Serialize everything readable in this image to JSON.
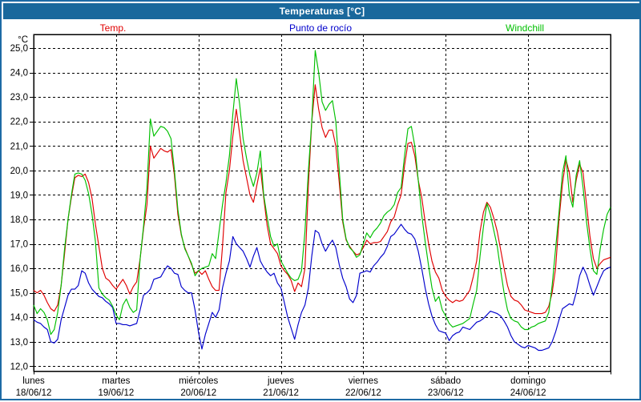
{
  "titlebar": {
    "title": "Temperaturas [°C]"
  },
  "legend": {
    "note": "series names bound from chart_data.series"
  },
  "chart_data": {
    "type": "line",
    "title": "Temperaturas [°C]",
    "ylabel": "°C",
    "ylim": [
      12.0,
      25.0
    ],
    "y_tick_step": 1.0,
    "y_tick_labels": [
      "25,0",
      "24,0",
      "23,0",
      "22,0",
      "21,0",
      "20,0",
      "19,0",
      "18,0",
      "17,0",
      "16,0",
      "15,0",
      "14,0",
      "13,0",
      "12,0"
    ],
    "grid": true,
    "legend_position": "top",
    "x_unit": "hours",
    "x_range_hours": [
      0,
      168
    ],
    "days": 7,
    "x_labels": [
      {
        "day": "lunes",
        "date": "18/06/12"
      },
      {
        "day": "martes",
        "date": "19/06/12"
      },
      {
        "day": "miércoles",
        "date": "20/06/12"
      },
      {
        "day": "jueves",
        "date": "21/06/12"
      },
      {
        "day": "viernes",
        "date": "22/06/12"
      },
      {
        "day": "sábado",
        "date": "23/06/12"
      },
      {
        "day": "domingo",
        "date": "24/06/12"
      }
    ],
    "series": [
      {
        "name": "Temp.",
        "color": "#e00000",
        "values": [
          15.1,
          15.0,
          15.1,
          14.9,
          14.6,
          14.35,
          14.25,
          14.5,
          15.3,
          16.6,
          18.0,
          18.9,
          19.7,
          19.8,
          19.75,
          19.85,
          19.5,
          18.85,
          17.8,
          16.9,
          16.0,
          15.6,
          15.5,
          15.3,
          15.15,
          15.35,
          15.55,
          15.3,
          14.95,
          15.25,
          15.45,
          16.4,
          17.6,
          18.6,
          21.0,
          20.5,
          20.7,
          20.9,
          20.8,
          20.75,
          20.85,
          19.8,
          18.2,
          17.35,
          16.85,
          16.5,
          16.15,
          15.8,
          15.9,
          15.75,
          15.9,
          15.55,
          15.25,
          15.1,
          15.1,
          16.9,
          19.1,
          20.0,
          21.4,
          22.5,
          21.5,
          20.4,
          19.7,
          19.0,
          18.7,
          19.4,
          20.1,
          18.9,
          17.75,
          17.0,
          16.8,
          16.6,
          16.1,
          15.9,
          15.75,
          15.5,
          15.05,
          15.4,
          15.25,
          16.0,
          19.4,
          22.0,
          23.5,
          22.5,
          21.75,
          21.35,
          21.65,
          21.65,
          21.0,
          19.5,
          17.9,
          17.15,
          16.9,
          16.7,
          16.55,
          16.6,
          16.85,
          17.15,
          17.0,
          17.05,
          17.05,
          17.1,
          17.3,
          17.5,
          17.9,
          18.1,
          18.6,
          19.0,
          20.2,
          21.1,
          21.15,
          20.6,
          19.6,
          18.9,
          17.9,
          17.0,
          16.3,
          15.85,
          15.6,
          15.1,
          14.85,
          14.7,
          14.6,
          14.7,
          14.65,
          14.7,
          14.9,
          15.1,
          15.65,
          16.3,
          17.5,
          18.3,
          18.7,
          18.5,
          18.05,
          17.5,
          16.75,
          16.0,
          15.3,
          14.85,
          14.7,
          14.65,
          14.5,
          14.3,
          14.25,
          14.2,
          14.15,
          14.15,
          14.15,
          14.2,
          14.45,
          15.0,
          16.0,
          18.0,
          19.45,
          20.45,
          19.9,
          18.7,
          19.6,
          20.25,
          19.9,
          18.6,
          17.3,
          16.4,
          16.0,
          16.2,
          16.35,
          16.4,
          16.45
        ]
      },
      {
        "name": "Punto de rocío",
        "color": "#0000cc",
        "values": [
          13.9,
          13.8,
          13.75,
          13.6,
          13.5,
          13.0,
          12.95,
          13.1,
          13.9,
          14.4,
          14.9,
          15.15,
          15.15,
          15.3,
          15.9,
          15.8,
          15.4,
          15.15,
          15.0,
          14.85,
          14.8,
          14.65,
          14.55,
          14.4,
          13.75,
          13.75,
          13.7,
          13.7,
          13.65,
          13.7,
          13.75,
          14.3,
          14.9,
          15.0,
          15.15,
          15.55,
          15.6,
          15.65,
          15.9,
          16.1,
          16.0,
          15.8,
          15.75,
          15.25,
          15.1,
          15.0,
          15.0,
          14.3,
          13.4,
          12.7,
          13.3,
          13.75,
          14.2,
          14.0,
          14.3,
          15.2,
          15.8,
          16.3,
          17.3,
          17.0,
          16.85,
          16.7,
          16.4,
          16.05,
          16.5,
          16.85,
          16.3,
          16.05,
          15.85,
          15.7,
          15.8,
          15.4,
          15.2,
          14.6,
          14.0,
          13.55,
          13.1,
          13.7,
          14.2,
          14.5,
          15.2,
          16.5,
          17.55,
          17.45,
          17.0,
          16.7,
          16.95,
          17.15,
          16.85,
          16.15,
          15.6,
          15.25,
          14.75,
          14.6,
          14.9,
          15.8,
          15.85,
          15.9,
          15.85,
          16.1,
          16.25,
          16.45,
          16.6,
          16.9,
          17.3,
          17.4,
          17.6,
          17.8,
          17.6,
          17.45,
          17.4,
          17.2,
          16.7,
          16.0,
          15.2,
          14.55,
          14.05,
          13.7,
          13.45,
          13.4,
          13.35,
          13.05,
          13.25,
          13.35,
          13.4,
          13.6,
          13.55,
          13.5,
          13.65,
          13.8,
          13.85,
          13.95,
          14.1,
          14.25,
          14.2,
          14.15,
          14.05,
          13.85,
          13.6,
          13.25,
          13.0,
          12.9,
          12.8,
          12.75,
          12.85,
          12.8,
          12.75,
          12.65,
          12.65,
          12.7,
          12.75,
          13.0,
          13.4,
          13.9,
          14.35,
          14.45,
          14.55,
          14.5,
          15.0,
          15.7,
          16.05,
          15.75,
          15.3,
          14.9,
          15.25,
          15.6,
          15.9,
          16.0,
          16.05
        ]
      },
      {
        "name": "Windchill",
        "color": "#00c000",
        "values": [
          14.5,
          14.15,
          14.35,
          14.2,
          13.9,
          13.3,
          13.5,
          14.2,
          15.3,
          16.8,
          18.0,
          19.0,
          19.85,
          19.9,
          19.85,
          19.6,
          19.05,
          18.2,
          17.1,
          15.2,
          14.95,
          14.8,
          14.7,
          14.45,
          14.1,
          13.9,
          14.5,
          14.75,
          14.4,
          14.2,
          14.3,
          16.4,
          17.7,
          19.3,
          22.1,
          21.4,
          21.6,
          21.8,
          21.75,
          21.6,
          21.3,
          20.0,
          18.4,
          17.4,
          16.8,
          16.5,
          16.2,
          15.7,
          15.9,
          16.0,
          16.05,
          16.1,
          16.6,
          16.4,
          17.5,
          18.6,
          19.5,
          20.6,
          22.3,
          23.75,
          22.7,
          21.3,
          20.5,
          19.8,
          19.35,
          19.9,
          20.8,
          19.0,
          18.1,
          17.3,
          16.9,
          17.0,
          16.3,
          16.05,
          15.8,
          15.6,
          15.5,
          15.55,
          15.9,
          17.5,
          20.0,
          22.0,
          24.9,
          24.0,
          22.8,
          22.45,
          22.7,
          22.85,
          22.0,
          20.0,
          18.0,
          17.2,
          16.85,
          16.7,
          16.45,
          16.55,
          17.0,
          17.45,
          17.25,
          17.5,
          17.65,
          17.85,
          18.15,
          18.3,
          18.4,
          18.6,
          19.1,
          19.3,
          20.6,
          21.7,
          21.8,
          21.0,
          19.6,
          18.2,
          17.1,
          16.1,
          15.2,
          14.65,
          14.85,
          14.3,
          14.05,
          13.75,
          13.6,
          13.65,
          13.7,
          13.75,
          13.85,
          13.95,
          14.55,
          15.1,
          16.5,
          17.7,
          18.65,
          18.2,
          17.55,
          16.9,
          15.9,
          15.0,
          14.3,
          13.95,
          13.85,
          13.8,
          13.6,
          13.5,
          13.5,
          13.6,
          13.65,
          13.75,
          13.8,
          13.85,
          14.2,
          15.3,
          16.8,
          18.3,
          19.9,
          20.6,
          19.0,
          18.5,
          19.8,
          20.4,
          19.3,
          17.9,
          16.8,
          15.9,
          15.75,
          16.8,
          17.6,
          18.2,
          18.5
        ]
      }
    ]
  }
}
